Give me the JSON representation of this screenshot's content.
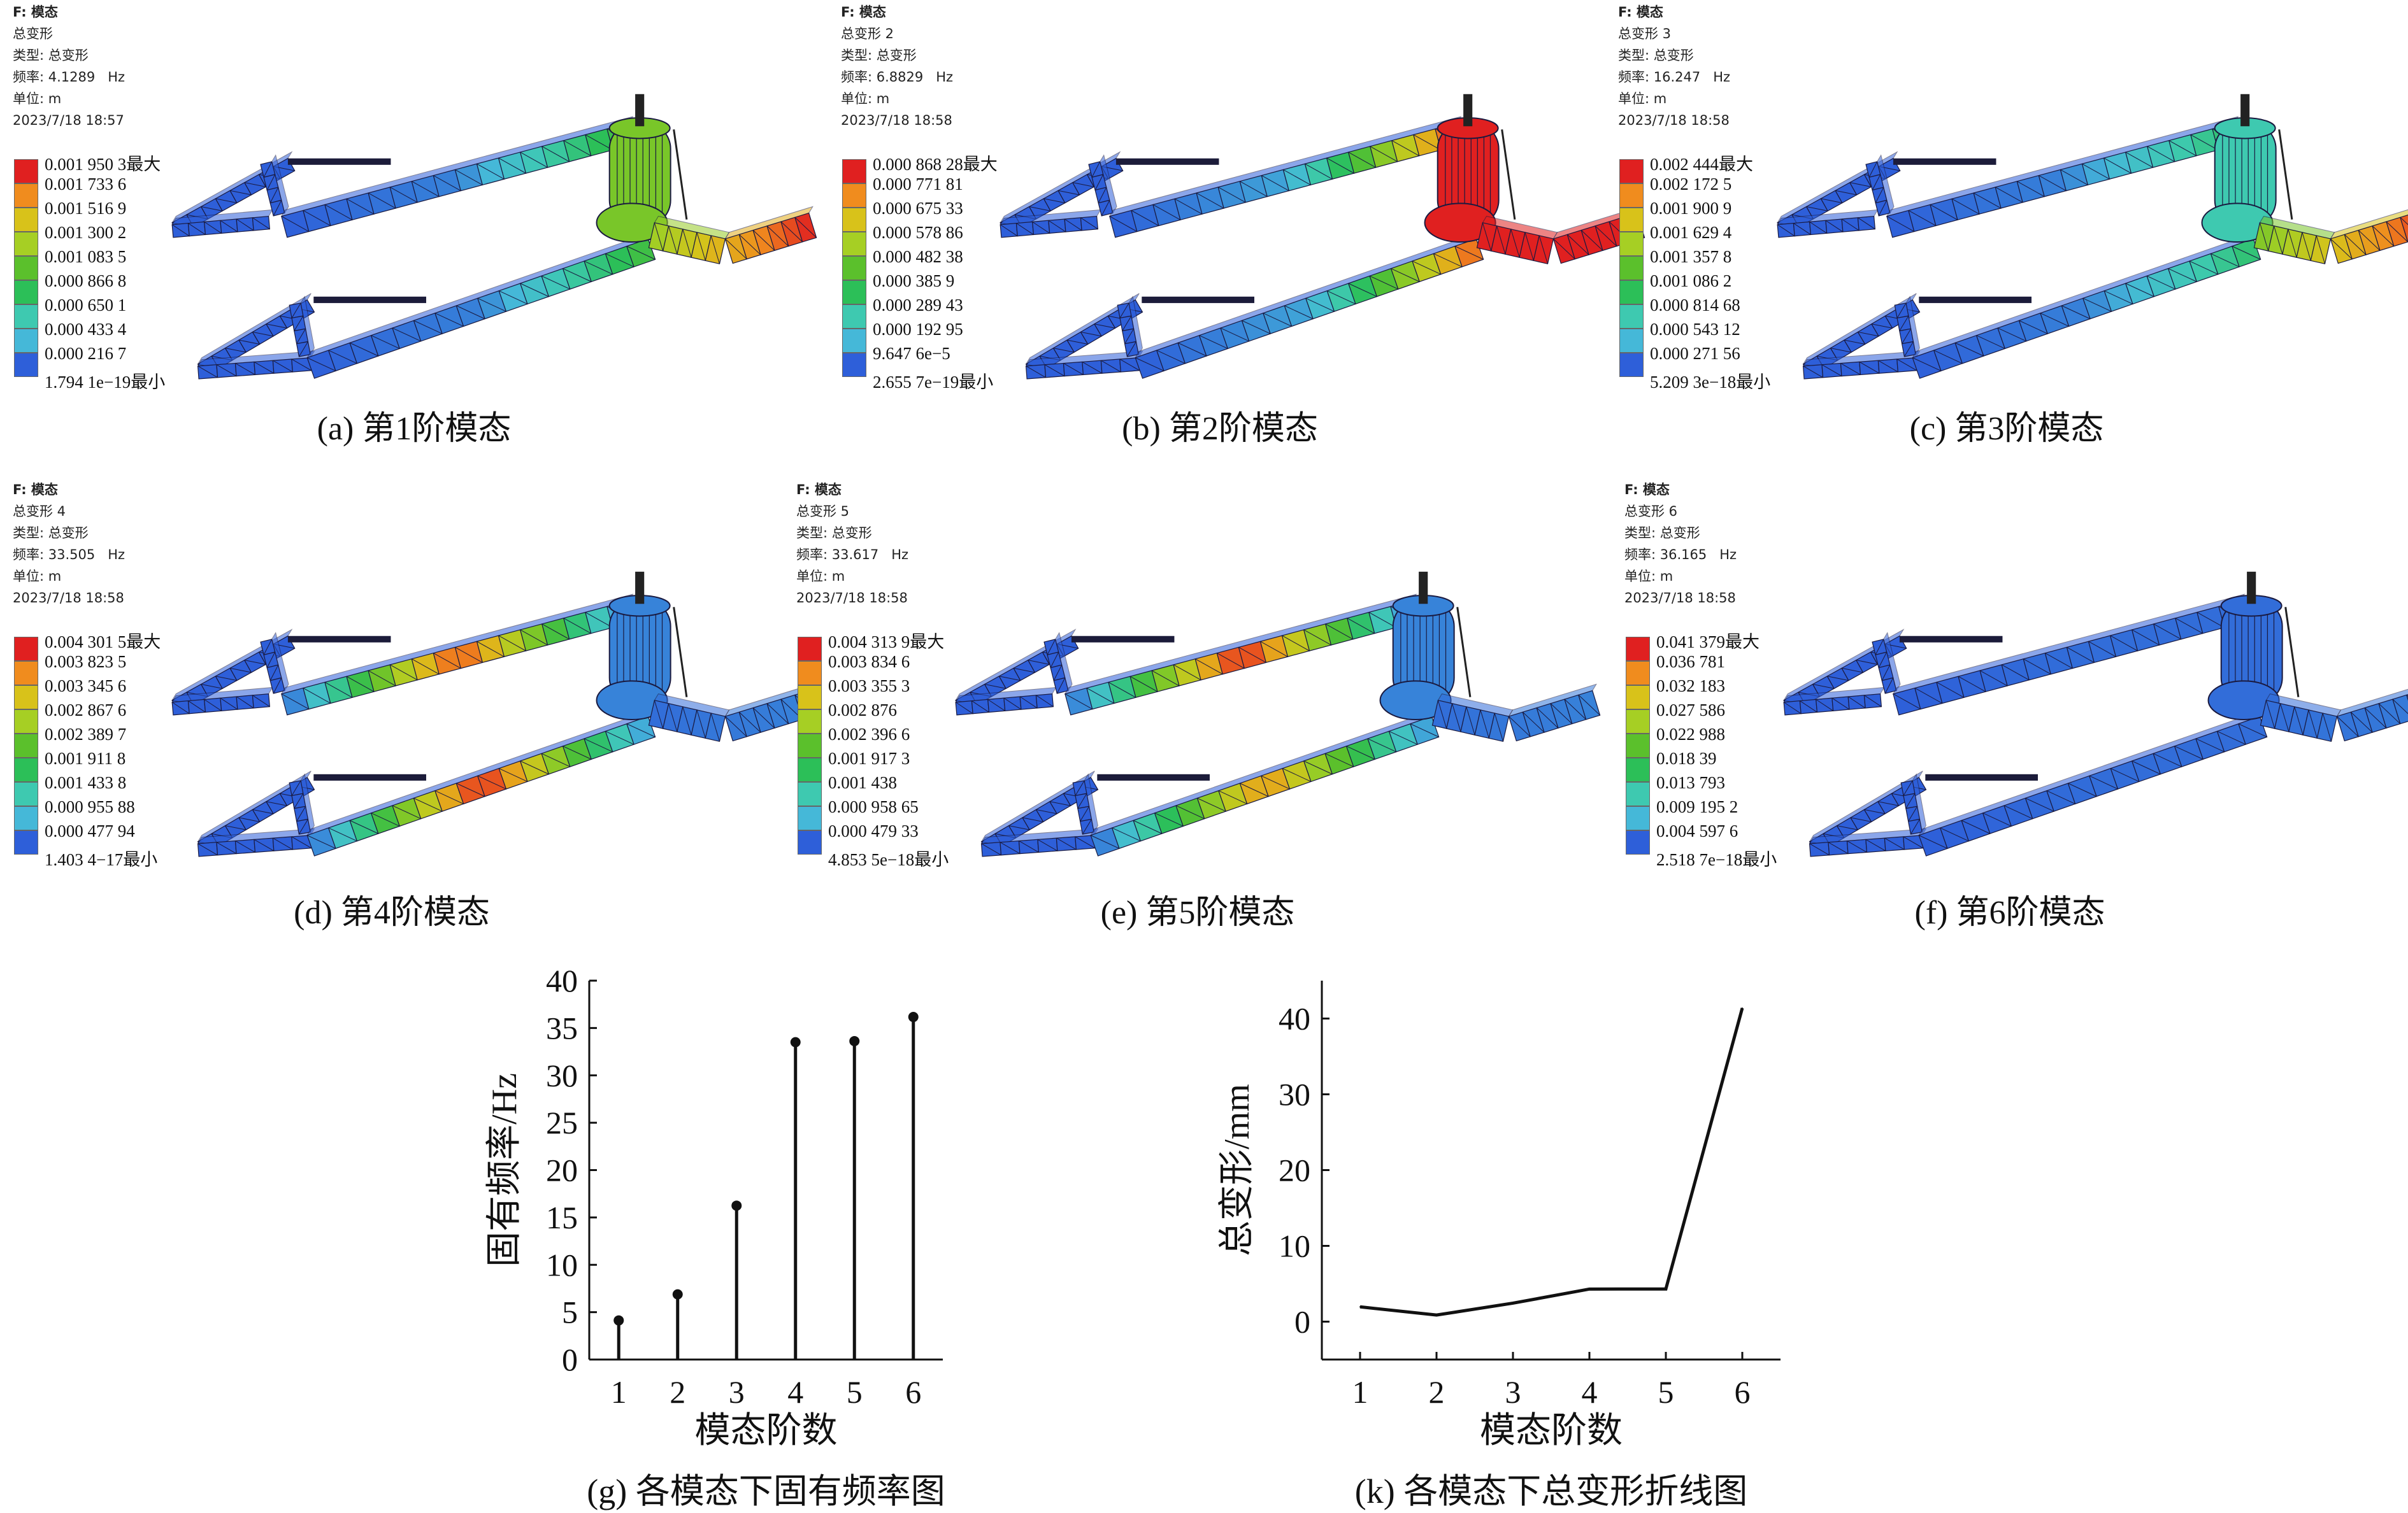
{
  "legend_colors": [
    "#e02020",
    "#f08c1e",
    "#d8c21a",
    "#a6cf24",
    "#5bc02c",
    "#2cbf58",
    "#3ec9b0",
    "#45b8d8",
    "#2e5fd9"
  ],
  "panels": [
    {
      "id": "a",
      "header": {
        "title": "F: 模态",
        "lines": [
          "总变形",
          "类型: 总变形",
          "频率: 4.1289   Hz",
          "单位: m",
          "2023/7/18 18:57"
        ]
      },
      "legend": [
        "0.001 950 3最大",
        "0.001 733 6",
        "0.001 516 9",
        "0.001 300 2",
        "0.001 083 5",
        "0.000 866 8",
        "0.000 650 1",
        "0.000 433 4",
        "0.000 216 7",
        "1.794 1e−19最小"
      ],
      "caption": "(a) 第1阶模态",
      "mode": 1
    },
    {
      "id": "b",
      "header": {
        "title": "F: 模态",
        "lines": [
          "总变形 2",
          "类型: 总变形",
          "频率: 6.8829   Hz",
          "单位: m",
          "2023/7/18 18:58"
        ]
      },
      "legend": [
        "0.000 868 28最大",
        "0.000 771 81",
        "0.000 675 33",
        "0.000 578 86",
        "0.000 482 38",
        "0.000 385 9",
        "0.000 289 43",
        "0.000 192 95",
        "9.647 6e−5",
        "2.655 7e−19最小"
      ],
      "caption": "(b) 第2阶模态",
      "mode": 2
    },
    {
      "id": "c",
      "header": {
        "title": "F: 模态",
        "lines": [
          "总变形 3",
          "类型: 总变形",
          "频率: 16.247   Hz",
          "单位: m",
          "2023/7/18 18:58"
        ]
      },
      "legend": [
        "0.002 444最大",
        "0.002 172 5",
        "0.001 900 9",
        "0.001 629 4",
        "0.001 357 8",
        "0.001 086 2",
        "0.000 814 68",
        "0.000 543 12",
        "0.000 271 56",
        "5.209 3e−18最小"
      ],
      "caption": "(c) 第3阶模态",
      "mode": 3
    },
    {
      "id": "d",
      "header": {
        "title": "F: 模态",
        "lines": [
          "总变形 4",
          "类型: 总变形",
          "频率: 33.505   Hz",
          "单位: m",
          "2023/7/18 18:58"
        ]
      },
      "legend": [
        "0.004 301 5最大",
        "0.003 823 5",
        "0.003 345 6",
        "0.002 867 6",
        "0.002 389 7",
        "0.001 911 8",
        "0.001 433 8",
        "0.000 955 88",
        "0.000 477 94",
        "1.403 4−17最小"
      ],
      "caption": "(d) 第4阶模态",
      "mode": 4
    },
    {
      "id": "e",
      "header": {
        "title": "F: 模态",
        "lines": [
          "总变形 5",
          "类型: 总变形",
          "频率: 33.617   Hz",
          "单位: m",
          "2023/7/18 18:58"
        ]
      },
      "legend": [
        "0.004 313 9最大",
        "0.003 834 6",
        "0.003 355 3",
        "0.002 876",
        "0.002 396 6",
        "0.001 917 3",
        "0.001 438",
        "0.000 958 65",
        "0.000 479 33",
        "4.853 5e−18最小"
      ],
      "caption": "(e) 第5阶模态",
      "mode": 5
    },
    {
      "id": "f",
      "header": {
        "title": "F: 模态",
        "lines": [
          "总变形 6",
          "类型: 总变形",
          "频率: 36.165   Hz",
          "单位: m",
          "2023/7/18 18:58"
        ]
      },
      "legend": [
        "0.041 379最大",
        "0.036 781",
        "0.032 183",
        "0.027 586",
        "0.022 988",
        "0.018 39",
        "0.013 793",
        "0.009 195 2",
        "0.004 597 6",
        "2.518 7e−18最小"
      ],
      "caption": "(f) 第6阶模态",
      "mode": 6
    }
  ],
  "chart_data": [
    {
      "type": "bar",
      "style": "stem",
      "x": [
        1,
        2,
        3,
        4,
        5,
        6
      ],
      "values": [
        4.1289,
        6.8829,
        16.247,
        33.505,
        33.617,
        36.165
      ],
      "xlabel": "模态阶数",
      "ylabel": "固有频率/Hz",
      "ylim": [
        0,
        40
      ],
      "yticks": [
        0,
        5,
        10,
        15,
        20,
        25,
        30,
        35,
        40
      ],
      "caption": "(g) 各模态下固有频率图"
    },
    {
      "type": "line",
      "x": [
        1,
        2,
        3,
        4,
        5,
        6
      ],
      "values": [
        1.95,
        0.87,
        2.44,
        4.3,
        4.31,
        41.38
      ],
      "xlabel": "模态阶数",
      "ylabel": "总变形/mm",
      "ylim": [
        -5,
        45
      ],
      "yticks": [
        0,
        10,
        20,
        30,
        40
      ],
      "caption": "(k) 各模态下总变形折线图"
    }
  ]
}
